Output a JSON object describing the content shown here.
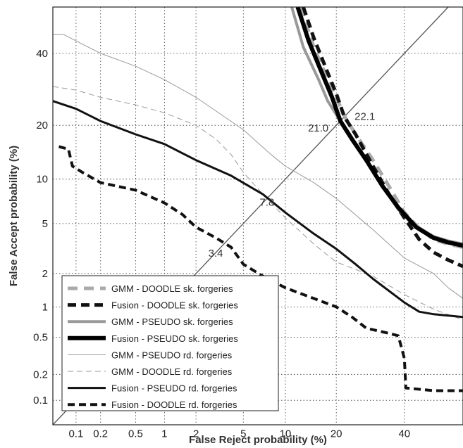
{
  "chart_data": {
    "type": "line",
    "title": "",
    "xlabel": "False Reject probability (%)",
    "ylabel": "False Accept probability (%)",
    "scale": "normal-deviate (DET)",
    "xlim": [
      0.05,
      60
    ],
    "ylim": [
      0.05,
      55
    ],
    "grid": "dotted",
    "legend_position": "bottom-left",
    "x_ticks": [
      {
        "value": 0.1,
        "label": "0.1"
      },
      {
        "value": 0.2,
        "label": "0.2"
      },
      {
        "value": 0.5,
        "label": "0.5"
      },
      {
        "value": 1,
        "label": "1"
      },
      {
        "value": 2,
        "label": "2"
      },
      {
        "value": 5,
        "label": "5"
      },
      {
        "value": 10,
        "label": "10"
      },
      {
        "value": 20,
        "label": "20"
      },
      {
        "value": 40,
        "label": "40"
      }
    ],
    "y_ticks": [
      {
        "value": 0.1,
        "label": "0.1"
      },
      {
        "value": 0.2,
        "label": "0.2"
      },
      {
        "value": 0.5,
        "label": "0.5"
      },
      {
        "value": 1,
        "label": "1"
      },
      {
        "value": 2,
        "label": "2"
      },
      {
        "value": 5,
        "label": "5"
      },
      {
        "value": 10,
        "label": "10"
      },
      {
        "value": 20,
        "label": "20"
      },
      {
        "value": 40,
        "label": "40"
      }
    ],
    "annotations": [
      {
        "text": "22.1",
        "x": 22.1,
        "y": 22.1
      },
      {
        "text": "21.0",
        "x": 21.0,
        "y": 21.0
      },
      {
        "text": "7.8",
        "x": 7.8,
        "y": 7.8
      },
      {
        "text": "3.4",
        "x": 3.4,
        "y": 3.4
      }
    ],
    "series": [
      {
        "name": "GMM - DOODLE sk. forgeries",
        "color": "#aaaaaa",
        "width": 5,
        "dash": "14,9",
        "points": [
          [
            12.5,
            55
          ],
          [
            15,
            42
          ],
          [
            18,
            32
          ],
          [
            20,
            27
          ],
          [
            22.1,
            22.1
          ],
          [
            25,
            18
          ],
          [
            30,
            13
          ],
          [
            35,
            9
          ],
          [
            40,
            6
          ],
          [
            45,
            4.6
          ],
          [
            50,
            3.8
          ],
          [
            55,
            3.5
          ],
          [
            60,
            3.3
          ]
        ]
      },
      {
        "name": "Fusion - DOODLE sk. forgeries",
        "color": "#111111",
        "width": 5,
        "dash": "12,7",
        "points": [
          [
            13,
            55
          ],
          [
            15,
            45
          ],
          [
            18,
            34
          ],
          [
            20,
            28
          ],
          [
            22,
            22
          ],
          [
            25,
            18
          ],
          [
            30,
            12
          ],
          [
            35,
            8
          ],
          [
            40,
            5.5
          ],
          [
            45,
            3.8
          ],
          [
            50,
            3
          ],
          [
            55,
            2.6
          ],
          [
            60,
            2.3
          ]
        ]
      },
      {
        "name": "GMM - PSEUDO sk. forgeries",
        "color": "#999999",
        "width": 4,
        "dash": "",
        "points": [
          [
            11,
            55
          ],
          [
            13,
            42
          ],
          [
            16,
            32
          ],
          [
            18,
            26
          ],
          [
            21,
            21
          ],
          [
            24,
            17
          ],
          [
            28,
            13
          ],
          [
            33,
            9
          ],
          [
            38,
            6.3
          ],
          [
            44,
            4.8
          ],
          [
            50,
            4
          ],
          [
            55,
            3.7
          ],
          [
            60,
            3.5
          ]
        ]
      },
      {
        "name": "Fusion - PSEUDO sk. forgeries",
        "color": "#000000",
        "width": 6,
        "dash": "",
        "points": [
          [
            12,
            55
          ],
          [
            14,
            44
          ],
          [
            17,
            33
          ],
          [
            19,
            27
          ],
          [
            21,
            21
          ],
          [
            24,
            17
          ],
          [
            28,
            13
          ],
          [
            33,
            9
          ],
          [
            38,
            6.5
          ],
          [
            44,
            4.7
          ],
          [
            50,
            3.9
          ],
          [
            55,
            3.6
          ],
          [
            60,
            3.4
          ]
        ]
      },
      {
        "name": "GMM - PSEUDO rd. forgeries",
        "color": "#999999",
        "width": 1,
        "dash": "",
        "points": [
          [
            0.05,
            46
          ],
          [
            0.07,
            46
          ],
          [
            0.1,
            44
          ],
          [
            0.2,
            40
          ],
          [
            0.5,
            36
          ],
          [
            1,
            32
          ],
          [
            2,
            27
          ],
          [
            5,
            19
          ],
          [
            8,
            14
          ],
          [
            10,
            12
          ],
          [
            15,
            9.5
          ],
          [
            20,
            7.5
          ],
          [
            30,
            4.5
          ],
          [
            40,
            2.7
          ],
          [
            50,
            2
          ],
          [
            55,
            1.5
          ],
          [
            60,
            1.2
          ]
        ]
      },
      {
        "name": "GMM - DOODLE rd. forgeries",
        "color": "#999999",
        "width": 1,
        "dash": "8,5",
        "points": [
          [
            0.05,
            30
          ],
          [
            0.1,
            29
          ],
          [
            0.2,
            27
          ],
          [
            0.5,
            25
          ],
          [
            1,
            23
          ],
          [
            2,
            20
          ],
          [
            3,
            17
          ],
          [
            4,
            14
          ],
          [
            5,
            11
          ],
          [
            7,
            8
          ],
          [
            10,
            5.5
          ],
          [
            15,
            3.5
          ],
          [
            20,
            2.5
          ],
          [
            30,
            1.9
          ],
          [
            40,
            1.3
          ],
          [
            50,
            0.95
          ],
          [
            60,
            0.75
          ]
        ]
      },
      {
        "name": "Fusion - PSEUDO rd. forgeries",
        "color": "#111111",
        "width": 3,
        "dash": "",
        "points": [
          [
            0.05,
            26
          ],
          [
            0.1,
            24
          ],
          [
            0.2,
            21
          ],
          [
            0.5,
            18
          ],
          [
            1,
            16
          ],
          [
            2,
            13
          ],
          [
            4,
            10.5
          ],
          [
            7,
            8
          ],
          [
            10,
            6
          ],
          [
            15,
            4.2
          ],
          [
            20,
            3.2
          ],
          [
            25,
            2.4
          ],
          [
            30,
            1.8
          ],
          [
            40,
            1.1
          ],
          [
            45,
            0.9
          ],
          [
            50,
            0.85
          ],
          [
            60,
            0.8
          ]
        ]
      },
      {
        "name": "Fusion - DOODLE rd. forgeries",
        "color": "#111111",
        "width": 4,
        "dash": "10,6",
        "points": [
          [
            0.06,
            15.5
          ],
          [
            0.08,
            15
          ],
          [
            0.09,
            12
          ],
          [
            0.12,
            11
          ],
          [
            0.2,
            9.5
          ],
          [
            0.5,
            8.5
          ],
          [
            1,
            7
          ],
          [
            1.5,
            5.8
          ],
          [
            2,
            4.7
          ],
          [
            3,
            3.9
          ],
          [
            4,
            3.3
          ],
          [
            5,
            2.4
          ],
          [
            7,
            1.9
          ],
          [
            10,
            1.5
          ],
          [
            15,
            1.2
          ],
          [
            20,
            1.0
          ],
          [
            24,
            0.8
          ],
          [
            28,
            0.62
          ],
          [
            35,
            0.55
          ],
          [
            38,
            0.52
          ],
          [
            40,
            0.3
          ],
          [
            40.5,
            0.14
          ],
          [
            50,
            0.13
          ],
          [
            60,
            0.13
          ]
        ]
      }
    ]
  }
}
